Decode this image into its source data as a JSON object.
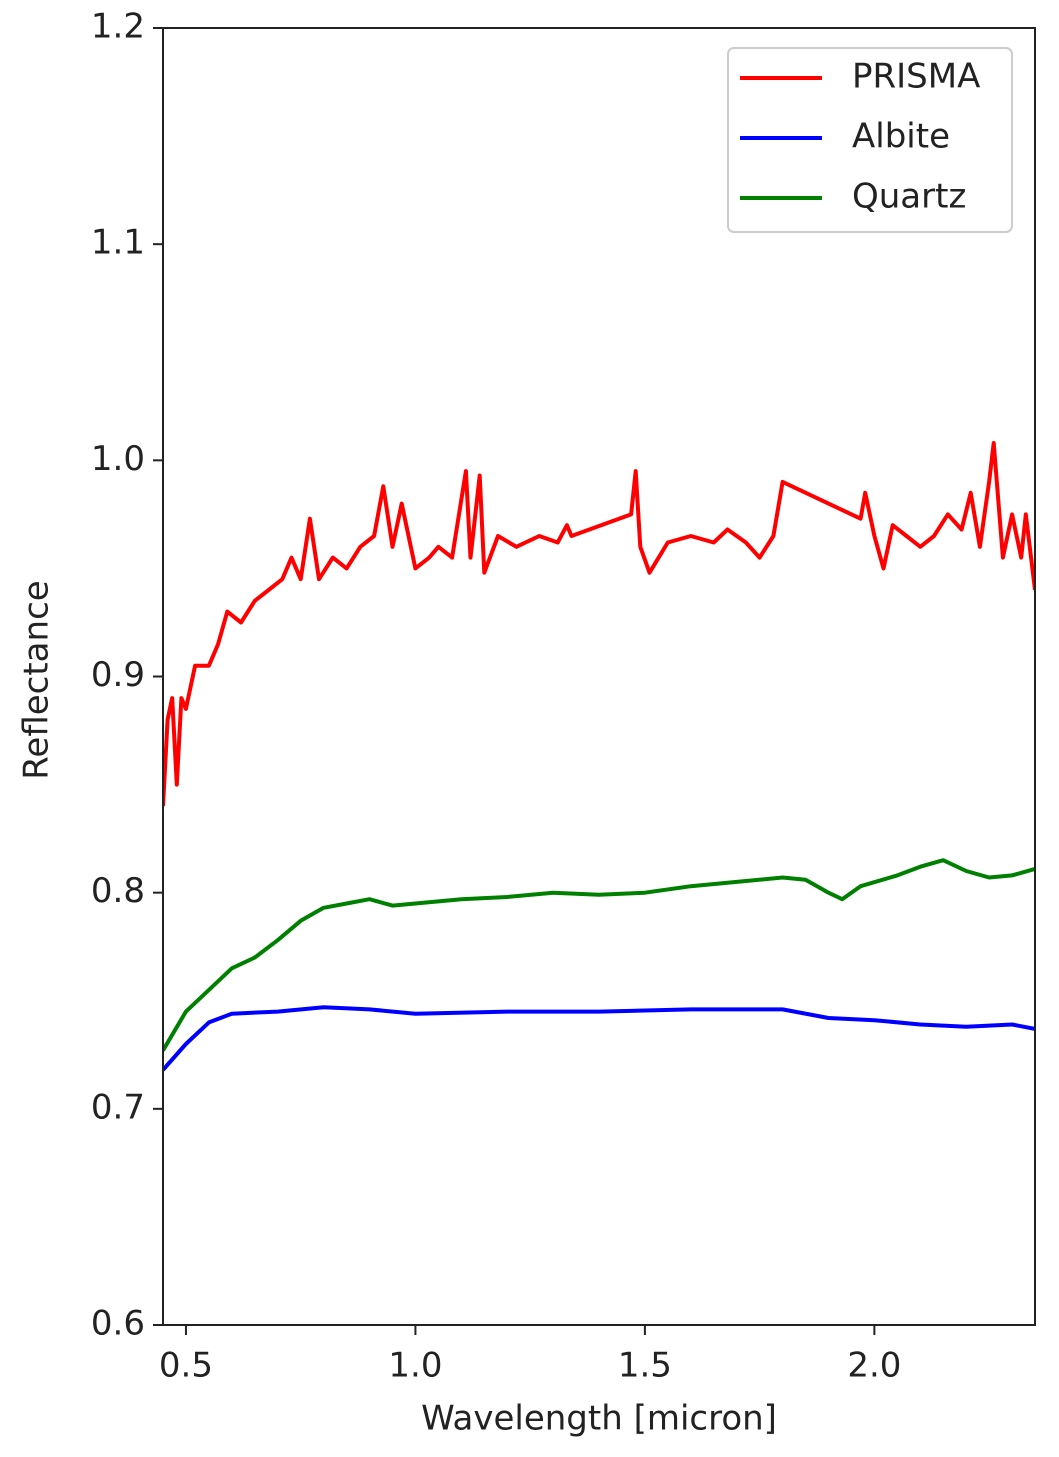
{
  "chart_data": {
    "type": "line",
    "xlabel": "Wavelength [micron]",
    "ylabel": "Reflectance",
    "xlim": [
      0.45,
      2.35
    ],
    "ylim": [
      0.6,
      1.2
    ],
    "xticks": [
      0.5,
      {
        "value": 1,
        "label": "1.0"
      },
      1.5,
      {
        "value": 2,
        "label": "2.0"
      }
    ],
    "yticks": [
      0.6,
      0.7,
      0.8,
      0.9,
      {
        "value": 1,
        "label": "1.0"
      },
      1.1,
      1.2
    ],
    "legend": "upper right",
    "series": [
      {
        "name": "PRISMA",
        "color": "#ff0000",
        "x": [
          0.45,
          0.46,
          0.47,
          0.48,
          0.49,
          0.5,
          0.52,
          0.55,
          0.57,
          0.59,
          0.62,
          0.65,
          0.68,
          0.71,
          0.73,
          0.75,
          0.77,
          0.79,
          0.82,
          0.85,
          0.88,
          0.91,
          0.93,
          0.95,
          0.97,
          1.0,
          1.03,
          1.05,
          1.08,
          1.11,
          1.12,
          1.14,
          1.15,
          1.18,
          1.22,
          1.27,
          1.31,
          1.33,
          1.34,
          1.47,
          1.48,
          1.49,
          1.51,
          1.55,
          1.6,
          1.65,
          1.68,
          1.72,
          1.75,
          1.78,
          1.8,
          1.97,
          1.98,
          2.0,
          2.02,
          2.04,
          2.07,
          2.1,
          2.13,
          2.16,
          2.19,
          2.21,
          2.23,
          2.25,
          2.26,
          2.28,
          2.3,
          2.32,
          2.33,
          2.35
        ],
        "values": [
          0.84,
          0.88,
          0.89,
          0.85,
          0.89,
          0.885,
          0.905,
          0.905,
          0.915,
          0.93,
          0.925,
          0.935,
          0.94,
          0.945,
          0.955,
          0.945,
          0.973,
          0.945,
          0.955,
          0.95,
          0.96,
          0.965,
          0.988,
          0.96,
          0.98,
          0.95,
          0.955,
          0.96,
          0.955,
          0.995,
          0.955,
          0.993,
          0.948,
          0.965,
          0.96,
          0.965,
          0.962,
          0.97,
          0.965,
          0.975,
          0.995,
          0.96,
          0.948,
          0.962,
          0.965,
          0.962,
          0.968,
          0.962,
          0.955,
          0.965,
          0.99,
          0.973,
          0.985,
          0.965,
          0.95,
          0.97,
          0.965,
          0.96,
          0.965,
          0.975,
          0.968,
          0.985,
          0.96,
          0.99,
          1.008,
          0.955,
          0.975,
          0.955,
          0.975,
          0.94
        ]
      },
      {
        "name": "Albite",
        "color": "#0000ff",
        "x": [
          0.45,
          0.5,
          0.55,
          0.6,
          0.7,
          0.8,
          0.9,
          1.0,
          1.2,
          1.4,
          1.6,
          1.8,
          1.9,
          2.0,
          2.1,
          2.2,
          2.3,
          2.35
        ],
        "values": [
          0.718,
          0.73,
          0.74,
          0.744,
          0.745,
          0.747,
          0.746,
          0.744,
          0.745,
          0.745,
          0.746,
          0.746,
          0.742,
          0.741,
          0.739,
          0.738,
          0.739,
          0.737
        ]
      },
      {
        "name": "Quartz",
        "color": "#008000",
        "x": [
          0.45,
          0.5,
          0.55,
          0.6,
          0.65,
          0.7,
          0.75,
          0.8,
          0.85,
          0.9,
          0.95,
          1.0,
          1.1,
          1.2,
          1.3,
          1.4,
          1.5,
          1.6,
          1.7,
          1.8,
          1.85,
          1.9,
          1.93,
          1.97,
          2.05,
          2.1,
          2.15,
          2.2,
          2.25,
          2.3,
          2.35
        ],
        "values": [
          0.727,
          0.745,
          0.755,
          0.765,
          0.77,
          0.778,
          0.787,
          0.793,
          0.795,
          0.797,
          0.794,
          0.795,
          0.797,
          0.798,
          0.8,
          0.799,
          0.8,
          0.803,
          0.805,
          0.807,
          0.806,
          0.8,
          0.797,
          0.803,
          0.808,
          0.812,
          0.815,
          0.81,
          0.807,
          0.808,
          0.811
        ]
      }
    ]
  }
}
